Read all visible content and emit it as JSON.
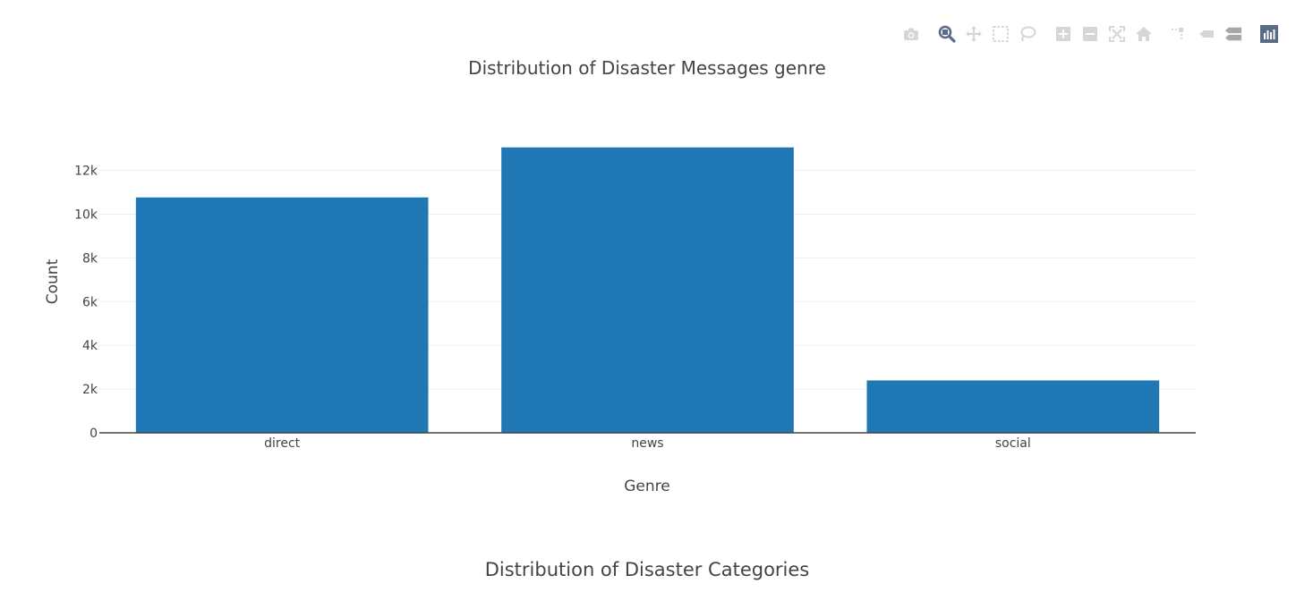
{
  "chart_data": {
    "type": "bar",
    "title": "Distribution of Disaster Messages genre",
    "xlabel": "Genre",
    "ylabel": "Count",
    "categories": [
      "direct",
      "news",
      "social"
    ],
    "values": [
      10766,
      13054,
      2396
    ],
    "ylim": [
      0,
      13741
    ],
    "yticks": [
      0,
      2000,
      4000,
      6000,
      8000,
      10000,
      12000
    ],
    "ytick_labels": [
      "0",
      "2k",
      "4k",
      "6k",
      "8k",
      "10k",
      "12k"
    ],
    "grid": true,
    "bar_color": "#1f77b4"
  },
  "second_chart": {
    "title": "Distribution of Disaster Categories"
  },
  "modebar": {
    "buttons": [
      {
        "name": "camera-icon",
        "active": false
      },
      {
        "name": "zoom-icon",
        "active": true
      },
      {
        "name": "pan-icon",
        "active": false
      },
      {
        "name": "box-select-icon",
        "active": false
      },
      {
        "name": "lasso-select-icon",
        "active": false
      },
      {
        "name": "zoom-in-icon",
        "active": false
      },
      {
        "name": "zoom-out-icon",
        "active": false
      },
      {
        "name": "autoscale-icon",
        "active": false
      },
      {
        "name": "home-icon",
        "active": false
      },
      {
        "name": "spike-lines-icon",
        "active": false
      },
      {
        "name": "hover-closest-icon",
        "active": false
      },
      {
        "name": "hover-compare-icon",
        "active": false
      },
      {
        "name": "plotly-logo-icon",
        "active": false
      }
    ]
  }
}
